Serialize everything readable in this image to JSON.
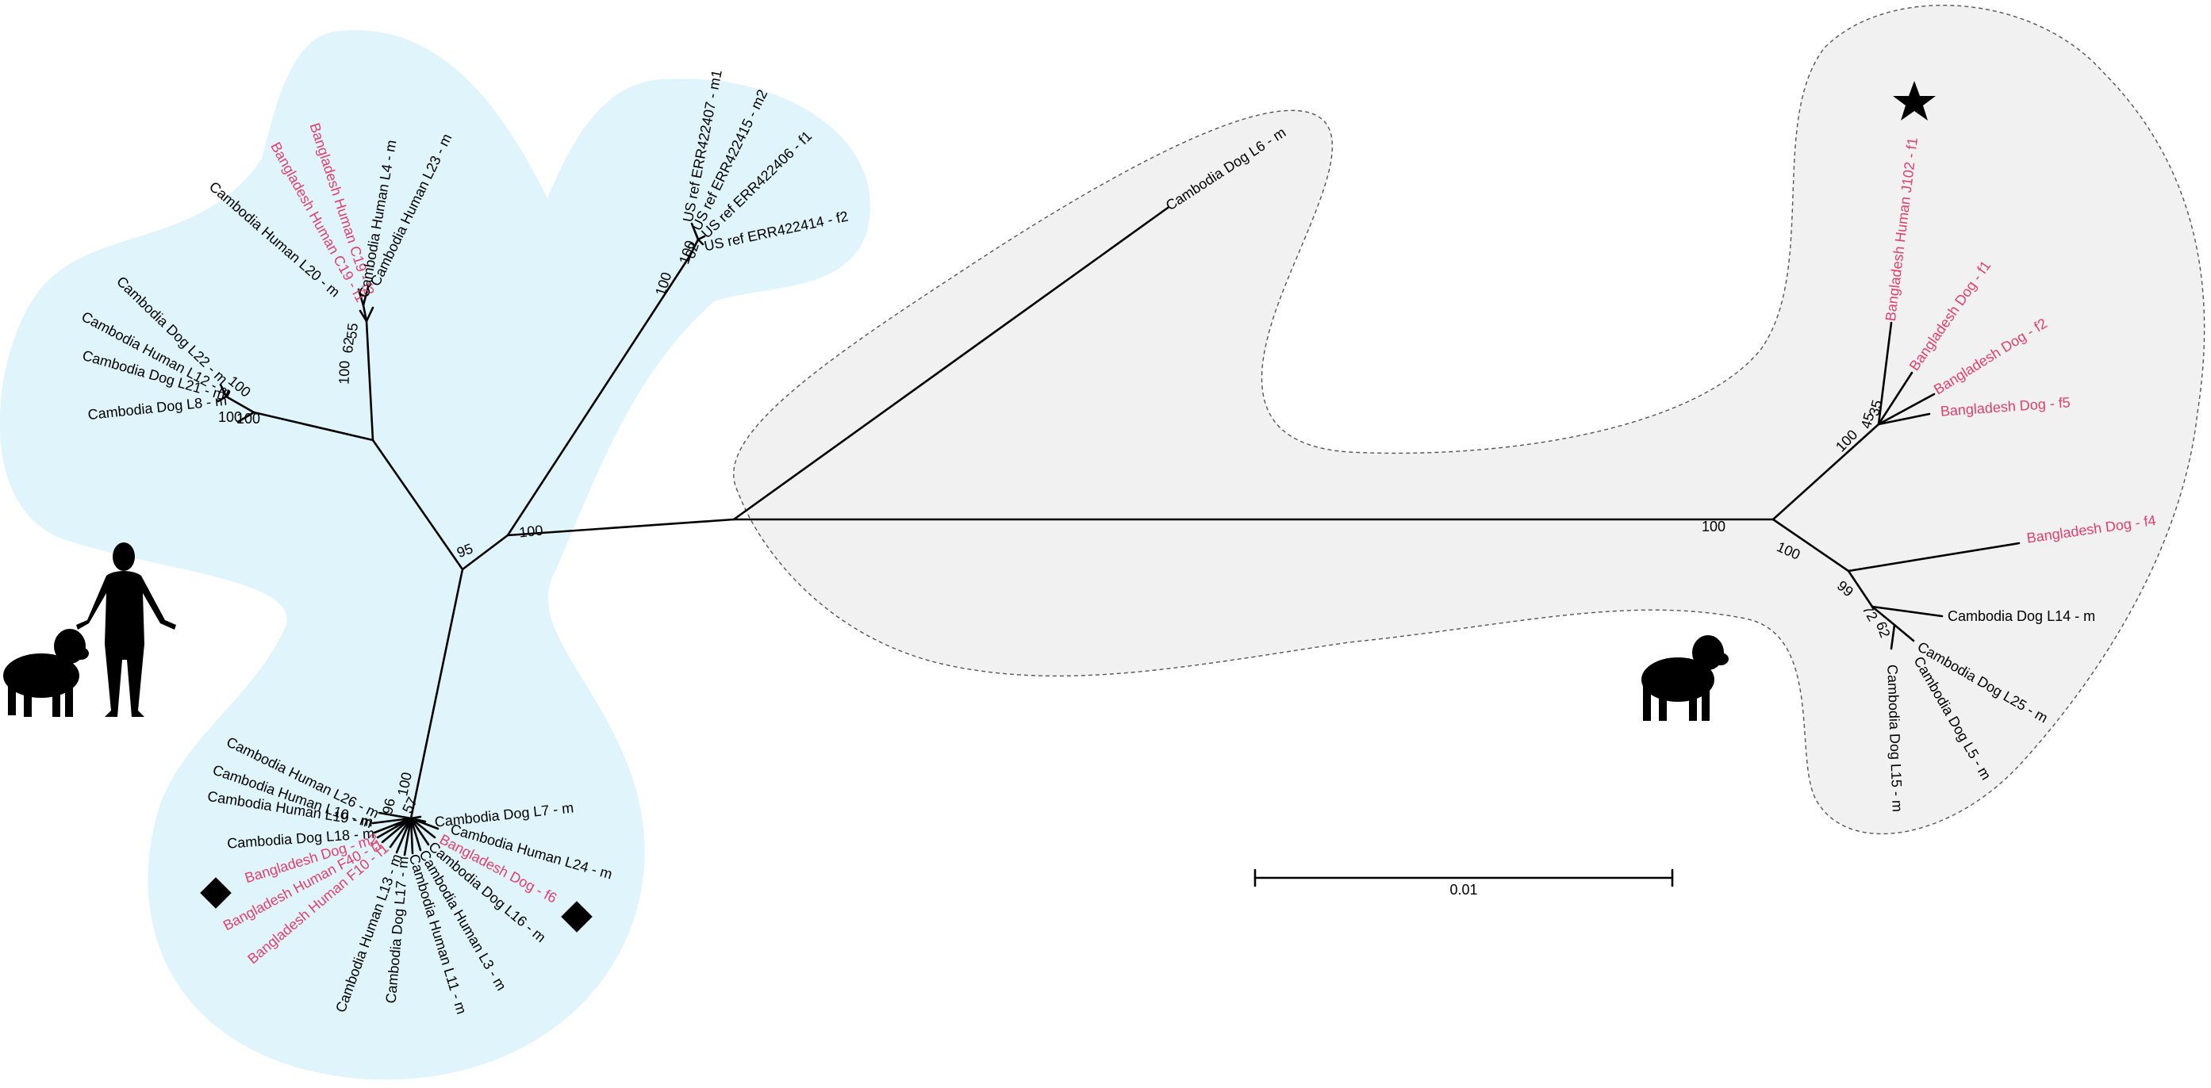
{
  "colors": {
    "blue_region": "#dff4fb",
    "grey_region": "#f1f1f1",
    "grey_region_border": "#555555",
    "bangladesh": "#e0406b",
    "cambodia": "#000000"
  },
  "scale_bar": {
    "label": "0.01"
  },
  "leaves": [
    {
      "id": "cd-l6",
      "text": "Cambodia Dog L6 - m",
      "group": "cambodia"
    },
    {
      "id": "us-407",
      "text": "US ref ERR422407 - m1",
      "group": "cambodia"
    },
    {
      "id": "us-415",
      "text": "US ref ERR422415 - m2",
      "group": "cambodia"
    },
    {
      "id": "us-406",
      "text": "US ref ERR422406 - f1",
      "group": "cambodia"
    },
    {
      "id": "us-414",
      "text": "US ref ERR422414 - f2",
      "group": "cambodia"
    },
    {
      "id": "bh-c19f1",
      "text": "Bangladesh Human C19 - f1",
      "group": "bangladesh"
    },
    {
      "id": "bh-c19f2",
      "text": "Bangladesh Human C19 - f2",
      "group": "bangladesh"
    },
    {
      "id": "ch-l4",
      "text": "Cambodia Human L4 - m",
      "group": "cambodia"
    },
    {
      "id": "ch-l23",
      "text": "Cambodia Human L23 - m",
      "group": "cambodia"
    },
    {
      "id": "ch-l20",
      "text": "Cambodia Human L20 - m",
      "group": "cambodia"
    },
    {
      "id": "cd-l22",
      "text": "Cambodia Dog L22 - m",
      "group": "cambodia"
    },
    {
      "id": "ch-l12",
      "text": "Cambodia Human L12 - m",
      "group": "cambodia"
    },
    {
      "id": "cd-l21",
      "text": "Cambodia Dog L21 - m",
      "group": "cambodia"
    },
    {
      "id": "cd-l8",
      "text": "Cambodia Dog L8 - m",
      "group": "cambodia"
    },
    {
      "id": "ch-l26",
      "text": "Cambodia Human L26 - m",
      "group": "cambodia"
    },
    {
      "id": "ch-l10",
      "text": "Cambodia Human L10 - m",
      "group": "cambodia"
    },
    {
      "id": "ch-l19",
      "text": "Cambodia Human L19 - m",
      "group": "cambodia"
    },
    {
      "id": "cd-l18",
      "text": "Cambodia Dog L18 - m",
      "group": "cambodia"
    },
    {
      "id": "bd-m2",
      "text": "Bangladesh Dog - m2",
      "group": "bangladesh"
    },
    {
      "id": "bh-f40",
      "text": "Bangladesh Human F40 - f1",
      "group": "bangladesh"
    },
    {
      "id": "bh-f10",
      "text": "Bangladesh Human F10 - f1",
      "group": "bangladesh"
    },
    {
      "id": "ch-l13",
      "text": "Cambodia Human L13 - m",
      "group": "cambodia"
    },
    {
      "id": "cd-l17",
      "text": "Cambodia Dog L17 - m",
      "group": "cambodia"
    },
    {
      "id": "ch-l11",
      "text": "Cambodia Human L11 - m",
      "group": "cambodia"
    },
    {
      "id": "ch-l3",
      "text": "Cambodia Human L3 - m",
      "group": "cambodia"
    },
    {
      "id": "cd-l16",
      "text": "Cambodia Dog L16 - m",
      "group": "cambodia"
    },
    {
      "id": "bd-f6",
      "text": "Bangladesh Dog - f6",
      "group": "bangladesh"
    },
    {
      "id": "ch-l24",
      "text": "Cambodia Human L24 - m",
      "group": "cambodia"
    },
    {
      "id": "cd-l7",
      "text": "Cambodia Dog L7 - m",
      "group": "cambodia"
    },
    {
      "id": "bh-j102",
      "text": "Bangladesh Human J102 - f1",
      "group": "bangladesh"
    },
    {
      "id": "bd-f1",
      "text": "Bangladesh Dog - f1",
      "group": "bangladesh"
    },
    {
      "id": "bd-f2",
      "text": "Bangladesh Dog - f2",
      "group": "bangladesh"
    },
    {
      "id": "bd-f5",
      "text": "Bangladesh Dog - f5",
      "group": "bangladesh"
    },
    {
      "id": "bd-f4",
      "text": "Bangladesh Dog - f4",
      "group": "bangladesh"
    },
    {
      "id": "cd-l14",
      "text": "Cambodia Dog L14 - m",
      "group": "cambodia"
    },
    {
      "id": "cd-l25",
      "text": "Cambodia Dog L25 - m",
      "group": "cambodia"
    },
    {
      "id": "cd-l5",
      "text": "Cambodia Dog L5 - m",
      "group": "cambodia"
    },
    {
      "id": "cd-l15",
      "text": "Cambodia Dog L15 - m",
      "group": "cambodia"
    }
  ],
  "bootstraps": [
    {
      "id": "b-root-right",
      "text": "100"
    },
    {
      "id": "b-root-left",
      "text": "100"
    },
    {
      "id": "b-95",
      "text": "95"
    },
    {
      "id": "b-top",
      "text": "100"
    },
    {
      "id": "b-us",
      "text": "100"
    },
    {
      "id": "b-us2",
      "text": "62"
    },
    {
      "id": "b-human-a",
      "text": "100"
    },
    {
      "id": "b-human-b",
      "text": "62"
    },
    {
      "id": "b-human-c",
      "text": "55"
    },
    {
      "id": "b-dog-a",
      "text": "100"
    },
    {
      "id": "b-dog-b",
      "text": "100"
    },
    {
      "id": "b-dog-c",
      "text": "100"
    },
    {
      "id": "b-bottom",
      "text": "100"
    },
    {
      "id": "b-bottom2",
      "text": "57"
    },
    {
      "id": "b-bottom3",
      "text": "96"
    },
    {
      "id": "b-right-up",
      "text": "100"
    },
    {
      "id": "b-right-45",
      "text": "45"
    },
    {
      "id": "b-right-35",
      "text": "35"
    },
    {
      "id": "b-right-low",
      "text": "100"
    },
    {
      "id": "b-right-99",
      "text": "99"
    },
    {
      "id": "b-right-72",
      "text": "72"
    },
    {
      "id": "b-right-62",
      "text": "62"
    }
  ]
}
